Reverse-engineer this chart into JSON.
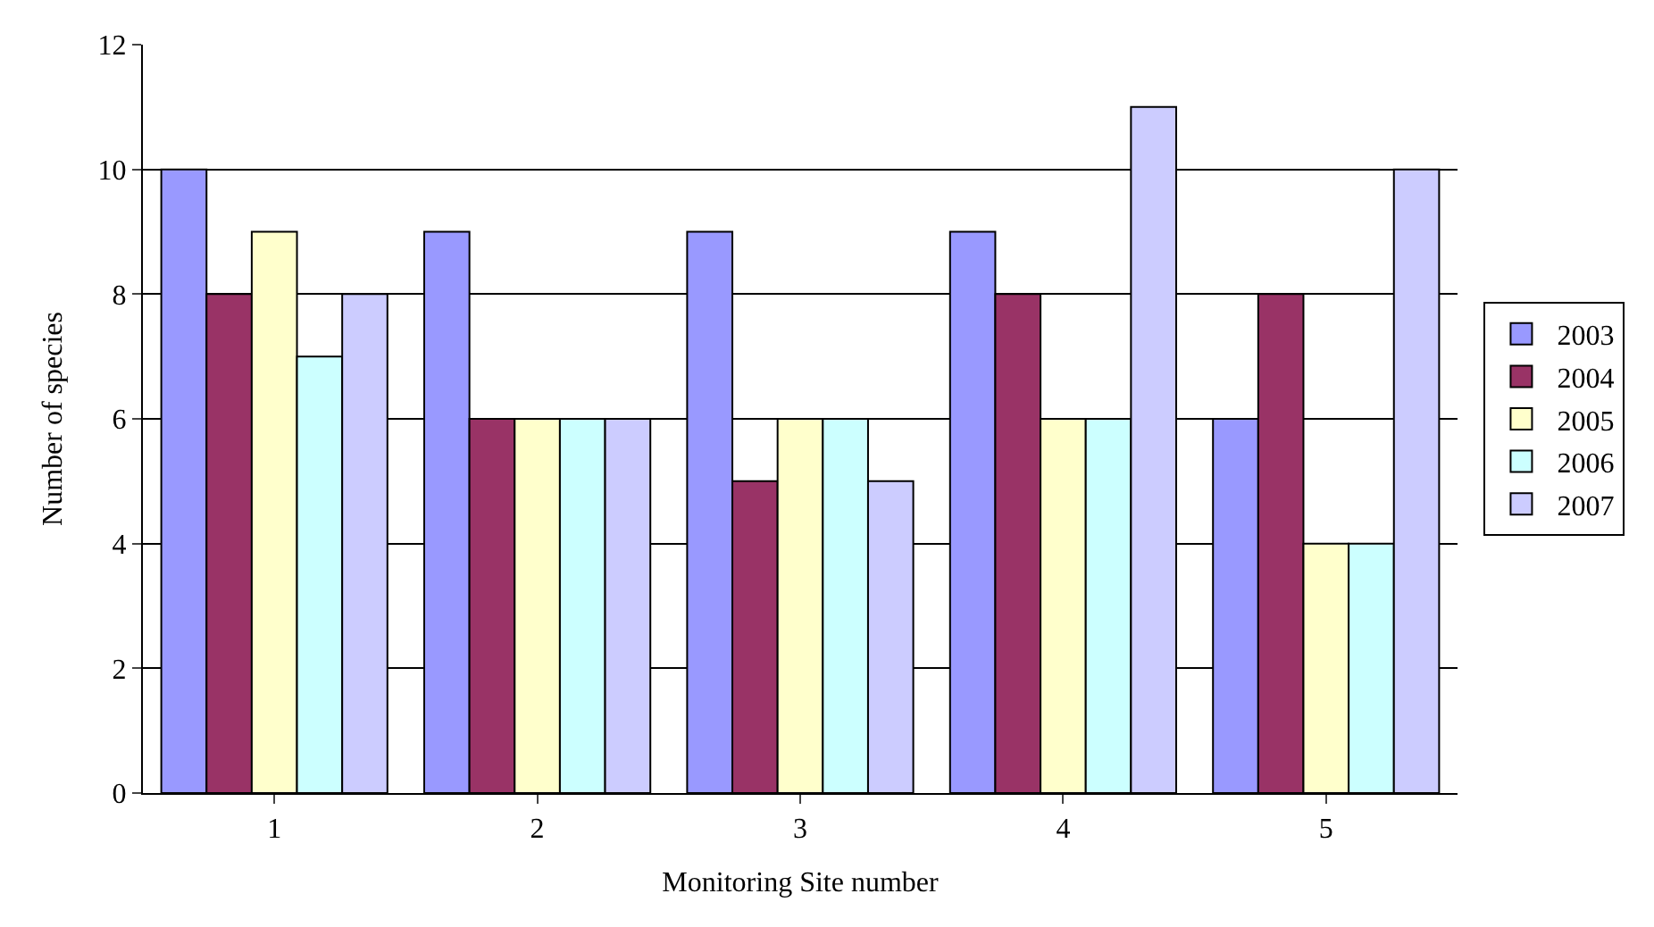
{
  "chart_data": {
    "type": "bar",
    "xlabel": "Monitoring Site number",
    "ylabel": "Number of species",
    "categories": [
      "1",
      "2",
      "3",
      "4",
      "5"
    ],
    "series": [
      {
        "name": "2003",
        "color": "#9999ff",
        "values": [
          10,
          9,
          9,
          9,
          6
        ]
      },
      {
        "name": "2004",
        "color": "#993366",
        "values": [
          8,
          6,
          5,
          8,
          8
        ]
      },
      {
        "name": "2005",
        "color": "#ffffcc",
        "values": [
          9,
          6,
          6,
          6,
          4
        ]
      },
      {
        "name": "2006",
        "color": "#ccffff",
        "values": [
          7,
          6,
          6,
          6,
          4
        ]
      },
      {
        "name": "2007",
        "color": "#ccccff",
        "values": [
          8,
          6,
          5,
          11,
          10
        ]
      }
    ],
    "ylim": [
      0,
      12
    ],
    "yticks": [
      0,
      2,
      4,
      6,
      8,
      10,
      12
    ],
    "grid": "y",
    "legend": "right"
  }
}
